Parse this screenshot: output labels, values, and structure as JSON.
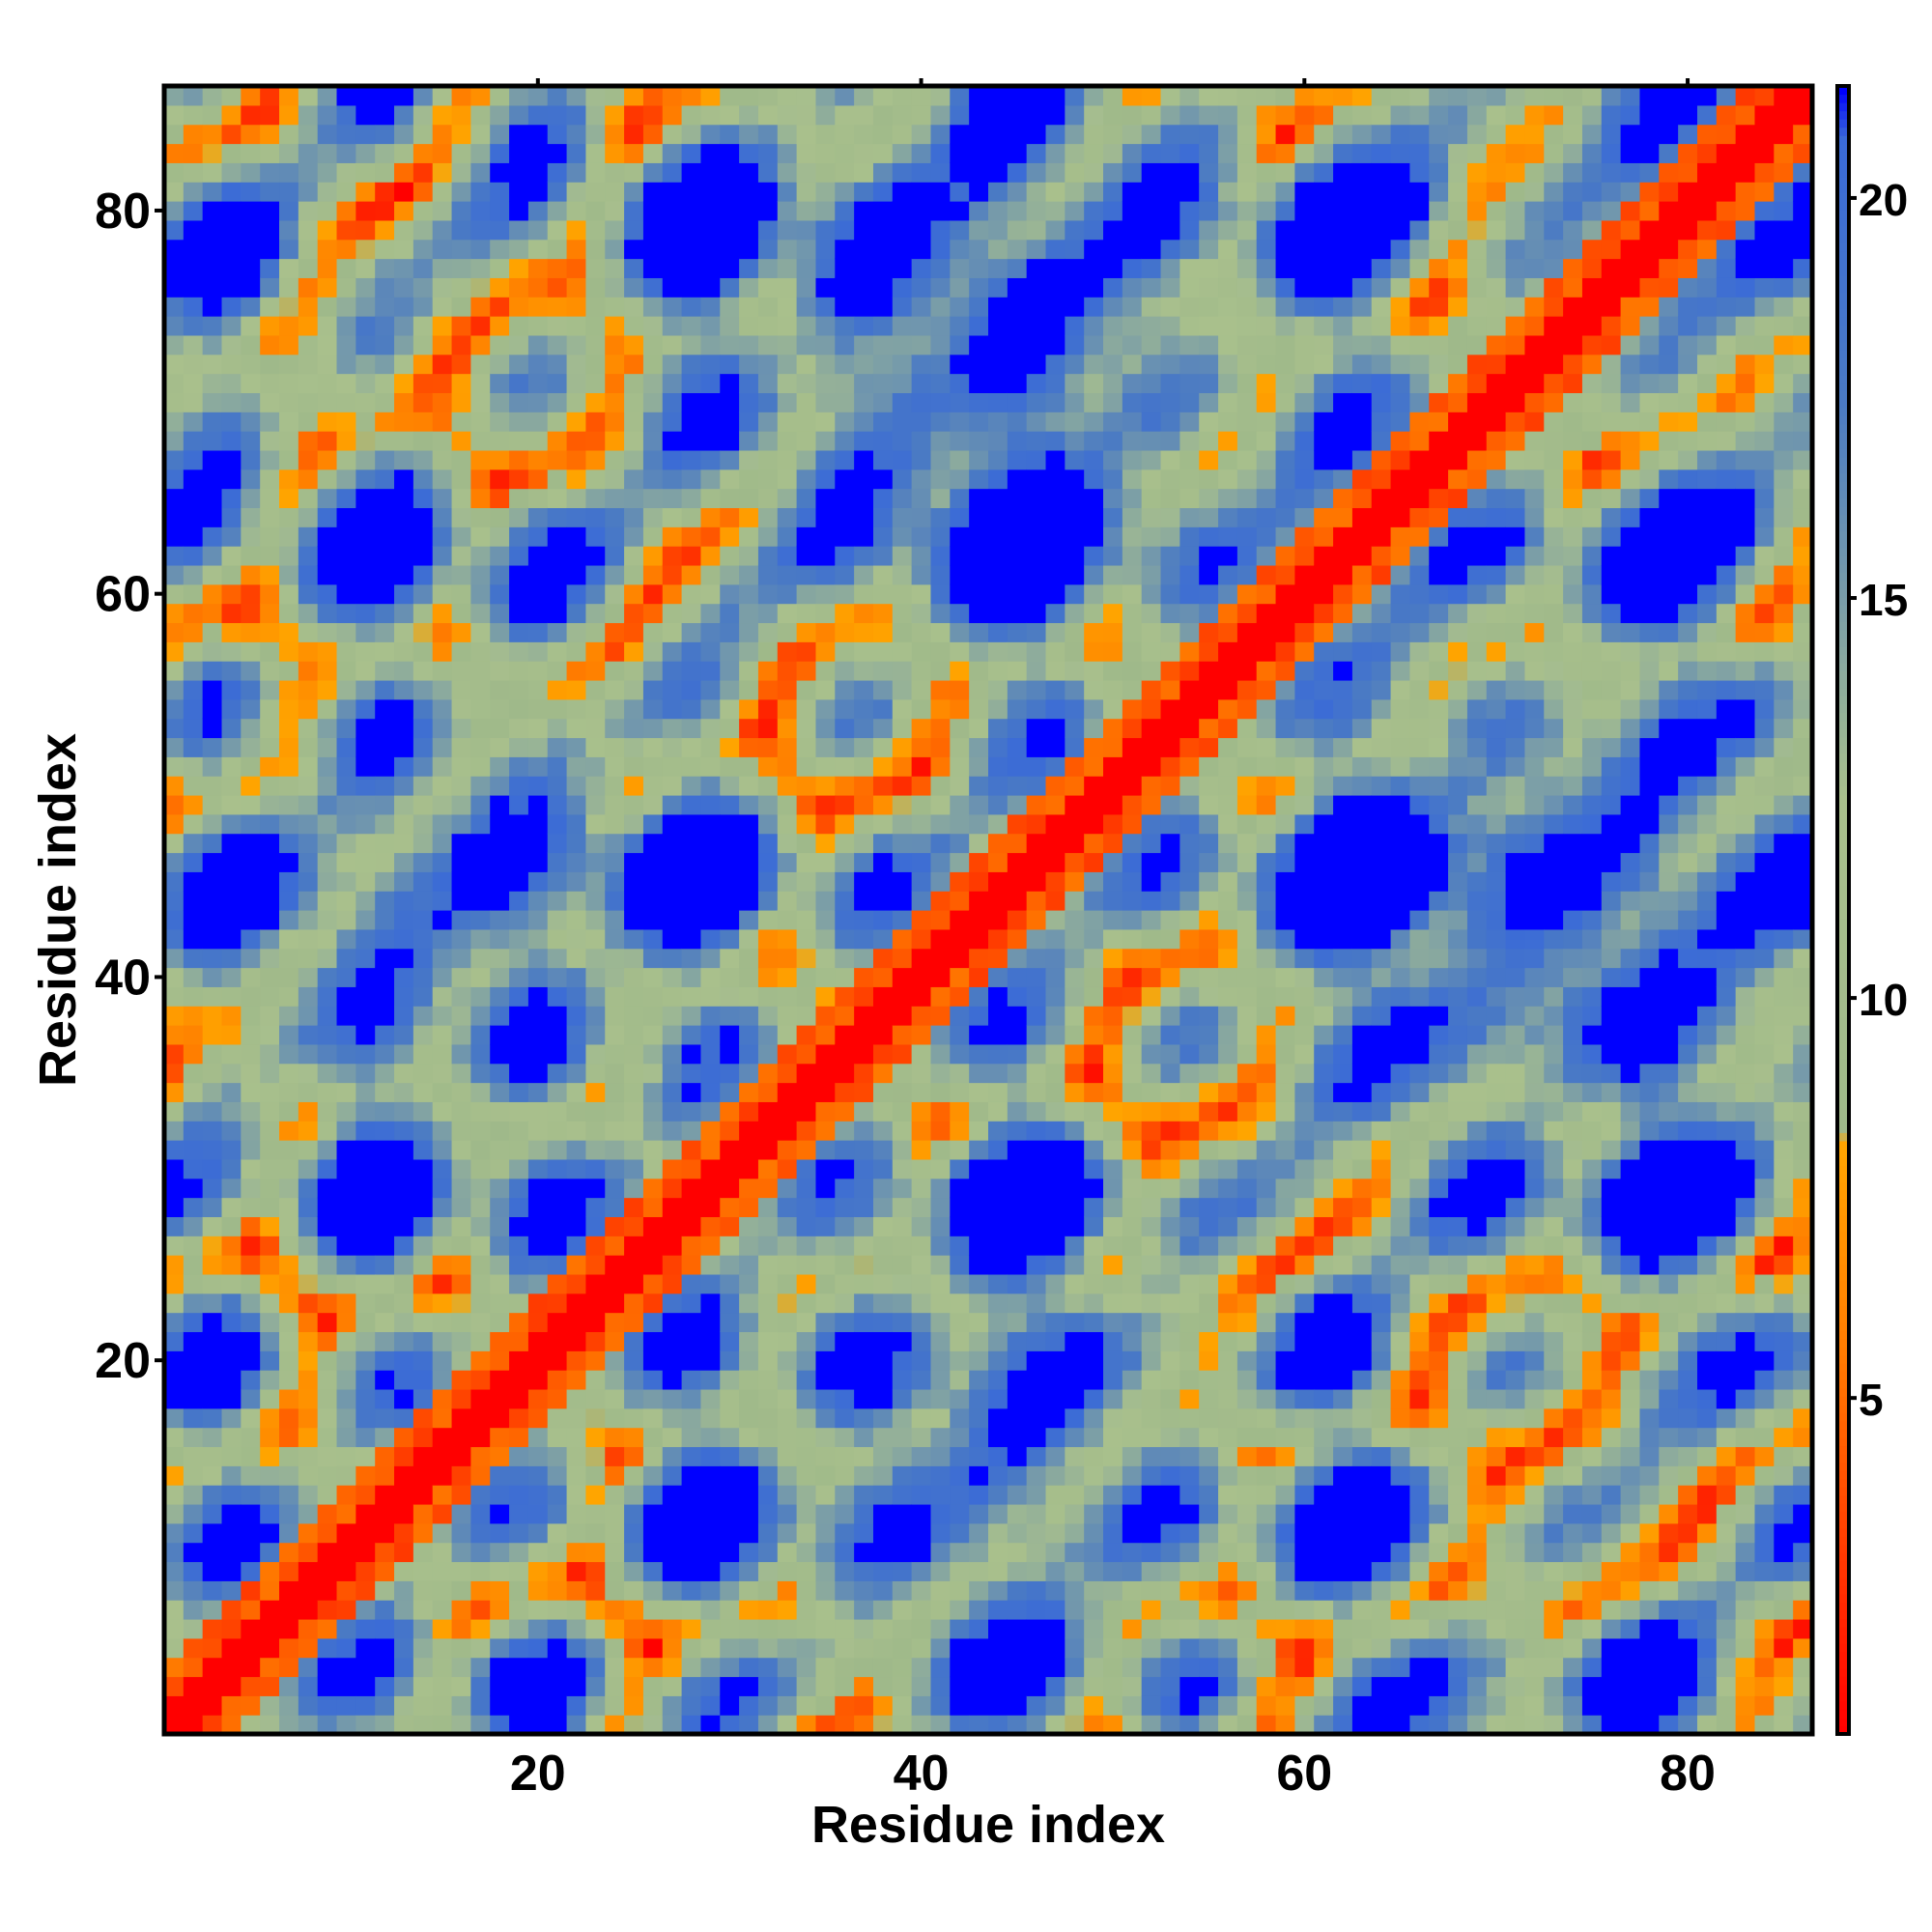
{
  "chart_data": {
    "type": "heatmap",
    "xlabel": "Residue index",
    "ylabel": "Residue index",
    "n_residues": 86,
    "xlim": [
      1,
      86
    ],
    "ylim": [
      1,
      86
    ],
    "xticks": [
      20,
      40,
      60,
      80
    ],
    "yticks": [
      20,
      40,
      60,
      80
    ],
    "colorbar": {
      "ticks": [
        5,
        10,
        15,
        20
      ],
      "range": [
        0.8,
        21.4
      ],
      "stops": [
        {
          "value": 0.8,
          "color": "#ff0000"
        },
        {
          "value": 5.5,
          "color": "#ff7a00"
        },
        {
          "value": 8.2,
          "color": "#ffa500"
        },
        {
          "value": 8.3,
          "color": "#9fb98a"
        },
        {
          "value": 12.5,
          "color": "#a9c08c"
        },
        {
          "value": 17.5,
          "color": "#4a7ac4"
        },
        {
          "value": 20.8,
          "color": "#3a6ad8"
        },
        {
          "value": 21.4,
          "color": "#0000ff"
        }
      ]
    },
    "structure": {
      "description_values": "distance matrix: low values near diagonal (red), periodic bands of orange, blue for large distances",
      "diagonal_value": 0.8,
      "far_value": 21.4
    },
    "colors": {
      "near": "#ff0000",
      "close": "#ff6a00",
      "close2": "#ffa500",
      "mid_light": "#a9c08c",
      "mid": "#8fab97",
      "mid_blue": "#5b87c0",
      "far": "#0000ff"
    }
  }
}
